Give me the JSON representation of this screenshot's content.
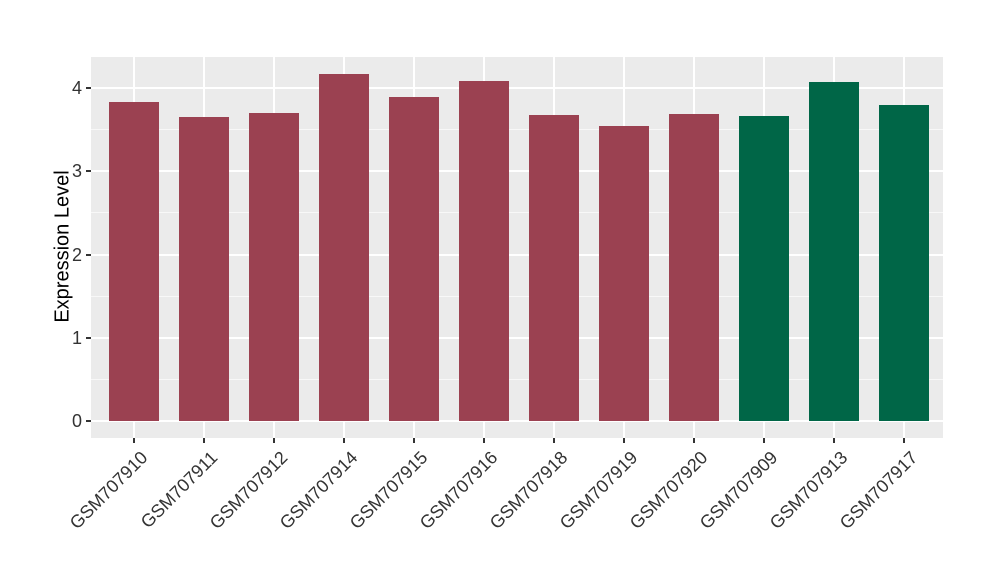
{
  "chart_data": {
    "type": "bar",
    "title": "",
    "xlabel": "",
    "ylabel": "Expression Level",
    "categories": [
      "GSM707910",
      "GSM707911",
      "GSM707912",
      "GSM707914",
      "GSM707915",
      "GSM707916",
      "GSM707918",
      "GSM707919",
      "GSM707920",
      "GSM707909",
      "GSM707913",
      "GSM707917"
    ],
    "values": [
      3.83,
      3.65,
      3.7,
      4.17,
      3.89,
      4.08,
      3.67,
      3.54,
      3.69,
      3.66,
      4.07,
      3.79
    ],
    "bar_colors": [
      "#9B4151",
      "#9B4151",
      "#9B4151",
      "#9B4151",
      "#9B4151",
      "#9B4151",
      "#9B4151",
      "#9B4151",
      "#9B4151",
      "#006647",
      "#006647",
      "#006647"
    ],
    "yticks": [
      0,
      1,
      2,
      3,
      4
    ],
    "minor_yticks": [
      0.5,
      1.5,
      2.5,
      3.5
    ],
    "ylim": [
      0,
      4.37
    ],
    "x_tick_angle": 45,
    "grid": true,
    "legend_position": "none",
    "style": {
      "panel_bg": "#EBEBEB",
      "grid_major_color": "#FFFFFF",
      "grid_minor_color": "#FFFFFF",
      "tick_text_color": "#333333",
      "axis_title_color": "#000000",
      "group_color_left": "#9B4151",
      "group_color_right": "#006647"
    }
  }
}
